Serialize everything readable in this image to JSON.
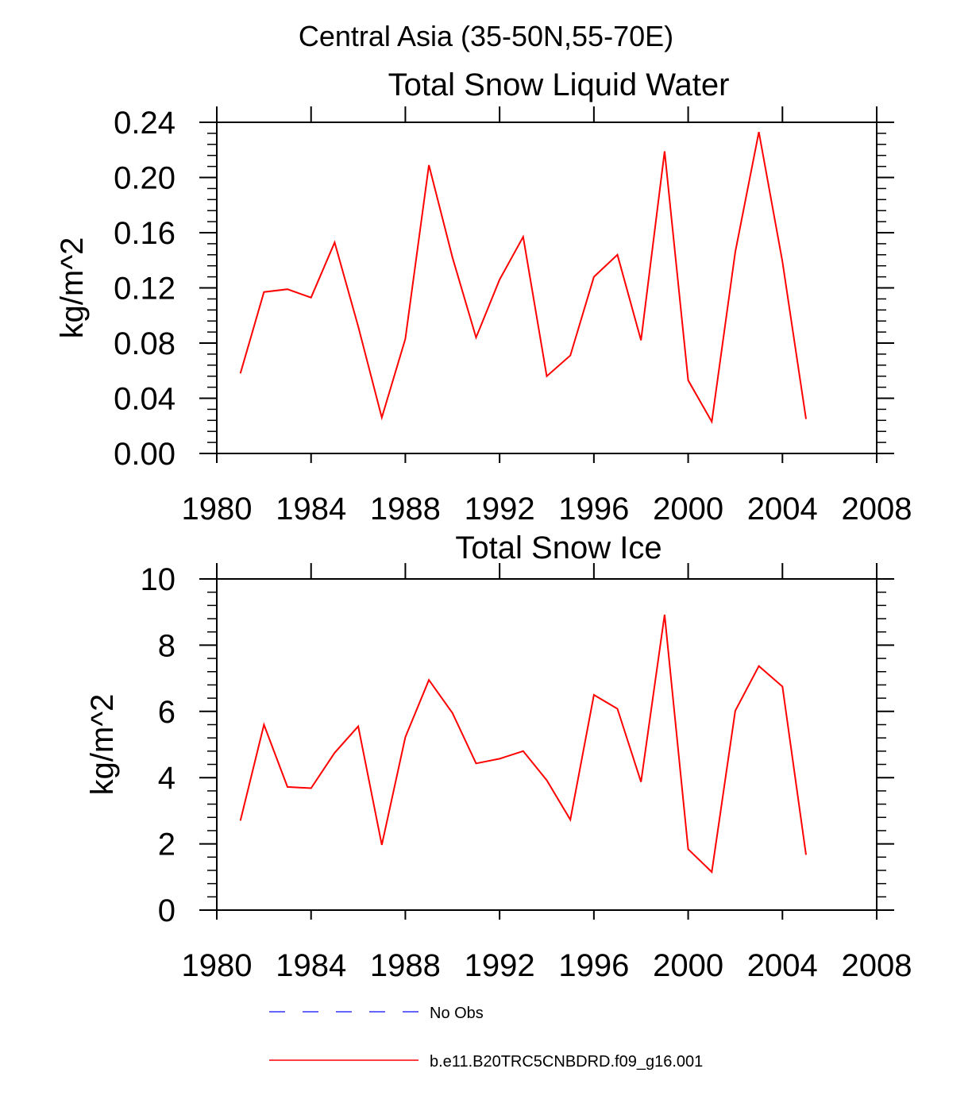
{
  "page_title": "Central Asia (35-50N,55-70E)",
  "colors": {
    "model_series": "#ff0000",
    "obs_series": "#3333ff",
    "frame": "#000000"
  },
  "legend": [
    {
      "label": "No Obs",
      "color": "#3333ff",
      "style": "dashed"
    },
    {
      "label": "b.e11.B20TRC5CNBDRD.f09_g16.001",
      "color": "#ff0000",
      "style": "solid"
    }
  ],
  "chart_data": [
    {
      "type": "line",
      "title": "Total Snow Liquid Water",
      "xlabel": "",
      "ylabel": "kg/m^2",
      "xlim": [
        1980,
        2008
      ],
      "ylim": [
        0,
        0.24
      ],
      "x_ticks": [
        1980,
        1984,
        1988,
        1992,
        1996,
        2000,
        2004,
        2008
      ],
      "y_ticks": [
        0.0,
        0.04,
        0.08,
        0.12,
        0.16,
        0.2,
        0.24
      ],
      "y_tick_labels": [
        "0.00",
        "0.04",
        "0.08",
        "0.12",
        "0.16",
        "0.20",
        "0.24"
      ],
      "grid": false,
      "legend_position": "below",
      "series": [
        {
          "name": "b.e11.B20TRC5CNBDRD.f09_g16.001",
          "color": "#ff0000",
          "x": [
            1981,
            1982,
            1983,
            1984,
            1985,
            1986,
            1987,
            1988,
            1989,
            1990,
            1991,
            1992,
            1993,
            1994,
            1995,
            1996,
            1997,
            1998,
            1999,
            2000,
            2001,
            2002,
            2003,
            2004,
            2005
          ],
          "y": [
            0.058,
            0.117,
            0.119,
            0.113,
            0.153,
            0.092,
            0.026,
            0.083,
            0.209,
            0.142,
            0.084,
            0.126,
            0.157,
            0.056,
            0.071,
            0.128,
            0.144,
            0.082,
            0.219,
            0.053,
            0.023,
            0.146,
            0.233,
            0.139,
            0.025
          ]
        }
      ]
    },
    {
      "type": "line",
      "title": "Total Snow Ice",
      "xlabel": "",
      "ylabel": "kg/m^2",
      "xlim": [
        1980,
        2008
      ],
      "ylim": [
        0,
        10
      ],
      "x_ticks": [
        1980,
        1984,
        1988,
        1992,
        1996,
        2000,
        2004,
        2008
      ],
      "y_ticks": [
        0,
        2,
        4,
        6,
        8,
        10
      ],
      "y_tick_labels": [
        "0",
        "2",
        "4",
        "6",
        "8",
        "10"
      ],
      "grid": false,
      "legend_position": "below",
      "series": [
        {
          "name": "b.e11.B20TRC5CNBDRD.f09_g16.001",
          "color": "#ff0000",
          "x": [
            1981,
            1982,
            1983,
            1984,
            1985,
            1986,
            1987,
            1988,
            1989,
            1990,
            1991,
            1992,
            1993,
            1994,
            1995,
            1996,
            1997,
            1998,
            1999,
            2000,
            2001,
            2002,
            2003,
            2004,
            2005
          ],
          "y": [
            2.7,
            5.6,
            3.72,
            3.68,
            4.75,
            5.55,
            1.97,
            5.22,
            6.95,
            5.95,
            4.43,
            4.57,
            4.8,
            3.92,
            2.73,
            6.5,
            6.08,
            3.87,
            8.92,
            1.84,
            1.15,
            6.02,
            7.37,
            6.75,
            1.67
          ]
        }
      ]
    }
  ]
}
